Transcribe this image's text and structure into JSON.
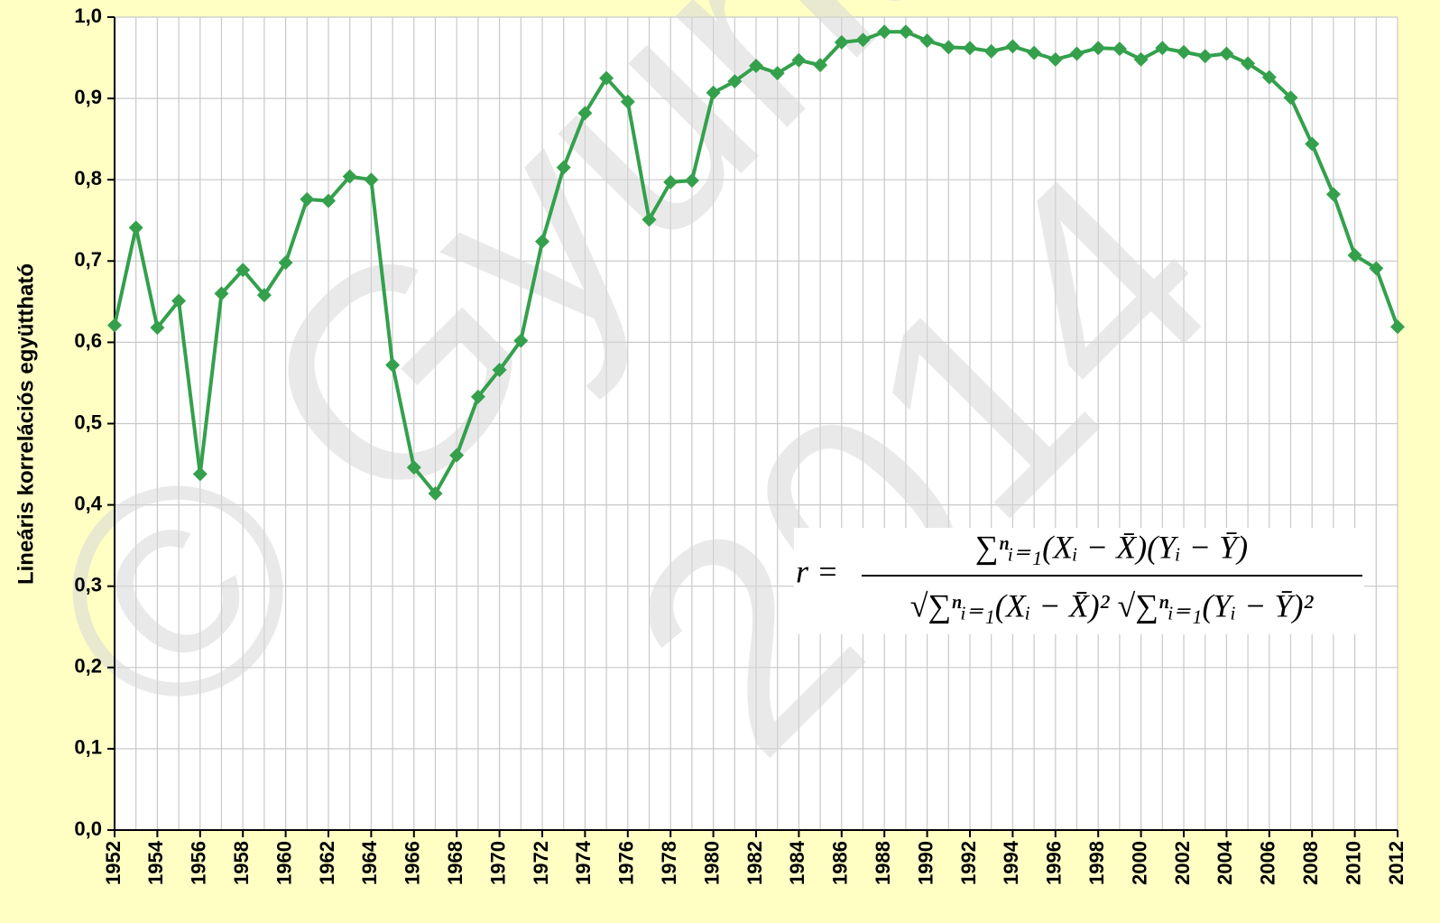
{
  "chart_data": {
    "type": "line",
    "ylabel": "Lineáris korrelációs együttható",
    "x": [
      1952,
      1953,
      1954,
      1955,
      1956,
      1957,
      1958,
      1959,
      1960,
      1961,
      1962,
      1963,
      1964,
      1965,
      1966,
      1967,
      1968,
      1969,
      1970,
      1971,
      1972,
      1973,
      1974,
      1975,
      1976,
      1977,
      1978,
      1979,
      1980,
      1981,
      1982,
      1983,
      1984,
      1985,
      1986,
      1987,
      1988,
      1989,
      1990,
      1991,
      1992,
      1993,
      1994,
      1995,
      1996,
      1997,
      1998,
      1999,
      2000,
      2001,
      2002,
      2003,
      2004,
      2005,
      2006,
      2007,
      2008,
      2009,
      2010,
      2011,
      2012
    ],
    "series": [
      {
        "name": "r",
        "color": "#34a04c",
        "values": [
          0.621,
          0.741,
          0.618,
          0.651,
          0.438,
          0.66,
          0.689,
          0.658,
          0.698,
          0.776,
          0.774,
          0.804,
          0.8,
          0.572,
          0.446,
          0.414,
          0.461,
          0.533,
          0.566,
          0.602,
          0.724,
          0.815,
          0.882,
          0.925,
          0.896,
          0.751,
          0.797,
          0.799,
          0.907,
          0.921,
          0.94,
          0.931,
          0.947,
          0.941,
          0.969,
          0.972,
          0.982,
          0.982,
          0.971,
          0.963,
          0.962,
          0.958,
          0.964,
          0.956,
          0.948,
          0.955,
          0.962,
          0.961,
          0.948,
          0.962,
          0.957,
          0.952,
          0.955,
          0.943,
          0.926,
          0.901,
          0.844,
          0.782,
          0.707,
          0.691,
          0.619
        ]
      }
    ],
    "xlim": [
      1952,
      2012
    ],
    "xticks": [
      1952,
      1954,
      1956,
      1958,
      1960,
      1962,
      1964,
      1966,
      1968,
      1970,
      1972,
      1974,
      1976,
      1978,
      1980,
      1982,
      1984,
      1986,
      1988,
      1990,
      1992,
      1994,
      1996,
      1998,
      2000,
      2002,
      2004,
      2006,
      2008,
      2010,
      2012
    ],
    "ylim": [
      0,
      1
    ],
    "yticks": [
      {
        "value": 0,
        "label": "0,0"
      },
      {
        "value": 0.1,
        "label": "0,1"
      },
      {
        "value": 0.2,
        "label": "0,2"
      },
      {
        "value": 0.3,
        "label": "0,3"
      },
      {
        "value": 0.4,
        "label": "0,4"
      },
      {
        "value": 0.5,
        "label": "0,5"
      },
      {
        "value": 0.6,
        "label": "0,6"
      },
      {
        "value": 0.7,
        "label": "0,7"
      },
      {
        "value": 0.8,
        "label": "0,8"
      },
      {
        "value": 0.9,
        "label": "0,9"
      },
      {
        "value": 1,
        "label": "1,0"
      }
    ],
    "grid": true,
    "watermark": [
      "© Gyuris Fer",
      "2014"
    ],
    "formula": {
      "lhs": "r =",
      "numerator": "∑ⁿᵢ₌₁(Xᵢ − X̄)(Yᵢ − Ȳ)",
      "denominator": "√∑ⁿᵢ₌₁(Xᵢ − X̄)² √∑ⁿᵢ₌₁(Yᵢ − Ȳ)²"
    }
  }
}
